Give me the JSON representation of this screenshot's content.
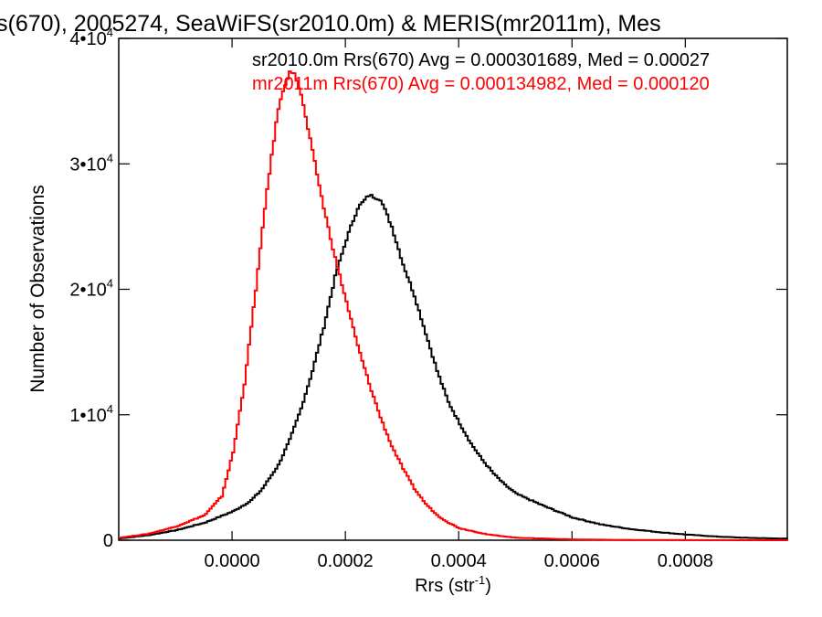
{
  "chart_data": {
    "type": "line",
    "title": "s(670), 2005274, SeaWiFS(sr2010.0m) & MERIS(mr2011m), Mes",
    "xlabel_main": "Rrs (str",
    "xlabel_sup": "-1",
    "xlabel_end": ")",
    "ylabel": "Number of Observations",
    "xlim": [
      -0.0002,
      0.00098
    ],
    "ylim": [
      0,
      40000
    ],
    "x_ticks": [
      {
        "value": 0.0,
        "label": "0.0000"
      },
      {
        "value": 0.0002,
        "label": "0.0002"
      },
      {
        "value": 0.0004,
        "label": "0.0004"
      },
      {
        "value": 0.0006,
        "label": "0.0006"
      },
      {
        "value": 0.0008,
        "label": "0.0008"
      }
    ],
    "y_ticks": [
      {
        "value": 0,
        "label": "0",
        "sup": ""
      },
      {
        "value": 10000,
        "label": "1•10",
        "sup": "4"
      },
      {
        "value": 20000,
        "label": "2•10",
        "sup": "4"
      },
      {
        "value": 30000,
        "label": "3•10",
        "sup": "4"
      },
      {
        "value": 40000,
        "label": "4•10",
        "sup": "4"
      }
    ],
    "grid": false,
    "legend_position": "top-right",
    "series": [
      {
        "name": "sr2010.0m Rrs(670) Avg = 0.000301689, Med = 0.00027",
        "color": "#000000",
        "points": [
          [
            -0.0002,
            150
          ],
          [
            -0.00015,
            400
          ],
          [
            -0.0001,
            800
          ],
          [
            -5e-05,
            1400
          ],
          [
            0.0,
            2300
          ],
          [
            3e-05,
            3100
          ],
          [
            5e-05,
            4000
          ],
          [
            8e-05,
            6000
          ],
          [
            0.0001,
            8000
          ],
          [
            0.00012,
            10500
          ],
          [
            0.00014,
            13500
          ],
          [
            0.00016,
            17000
          ],
          [
            0.00018,
            21000
          ],
          [
            0.0002,
            24000
          ],
          [
            0.00022,
            26500
          ],
          [
            0.00024,
            27500
          ],
          [
            0.00026,
            27200
          ],
          [
            0.00028,
            25000
          ],
          [
            0.0003,
            22000
          ],
          [
            0.00032,
            19500
          ],
          [
            0.00034,
            16500
          ],
          [
            0.00036,
            13500
          ],
          [
            0.00038,
            11000
          ],
          [
            0.0004,
            9300
          ],
          [
            0.00042,
            7700
          ],
          [
            0.00044,
            6400
          ],
          [
            0.00046,
            5300
          ],
          [
            0.00048,
            4400
          ],
          [
            0.0005,
            3700
          ],
          [
            0.00055,
            2700
          ],
          [
            0.0006,
            1800
          ],
          [
            0.00065,
            1250
          ],
          [
            0.0007,
            900
          ],
          [
            0.00075,
            650
          ],
          [
            0.0008,
            450
          ],
          [
            0.00085,
            300
          ],
          [
            0.0009,
            200
          ],
          [
            0.00098,
            120
          ]
        ]
      },
      {
        "name": "mr2011m Rrs(670) Avg = 0.000134982, Med = 0.000120",
        "color": "#ff0000",
        "points": [
          [
            -0.0002,
            200
          ],
          [
            -0.00015,
            500
          ],
          [
            -0.0001,
            1100
          ],
          [
            -5e-05,
            2000
          ],
          [
            -2e-05,
            3500
          ],
          [
            0.0,
            7000
          ],
          [
            2e-05,
            12500
          ],
          [
            4e-05,
            20000
          ],
          [
            6e-05,
            28000
          ],
          [
            8e-05,
            34500
          ],
          [
            0.0001,
            37500
          ],
          [
            0.00011,
            37000
          ],
          [
            0.00012,
            35500
          ],
          [
            0.00014,
            31000
          ],
          [
            0.00016,
            26500
          ],
          [
            0.00018,
            22500
          ],
          [
            0.0002,
            19000
          ],
          [
            0.00022,
            15500
          ],
          [
            0.00024,
            12500
          ],
          [
            0.00026,
            9800
          ],
          [
            0.00028,
            7500
          ],
          [
            0.0003,
            5700
          ],
          [
            0.00032,
            4100
          ],
          [
            0.00034,
            2900
          ],
          [
            0.00036,
            2000
          ],
          [
            0.00038,
            1400
          ],
          [
            0.0004,
            950
          ],
          [
            0.00045,
            450
          ],
          [
            0.0005,
            200
          ],
          [
            0.0006,
            60
          ],
          [
            0.0007,
            20
          ],
          [
            0.00098,
            0
          ]
        ]
      }
    ]
  }
}
